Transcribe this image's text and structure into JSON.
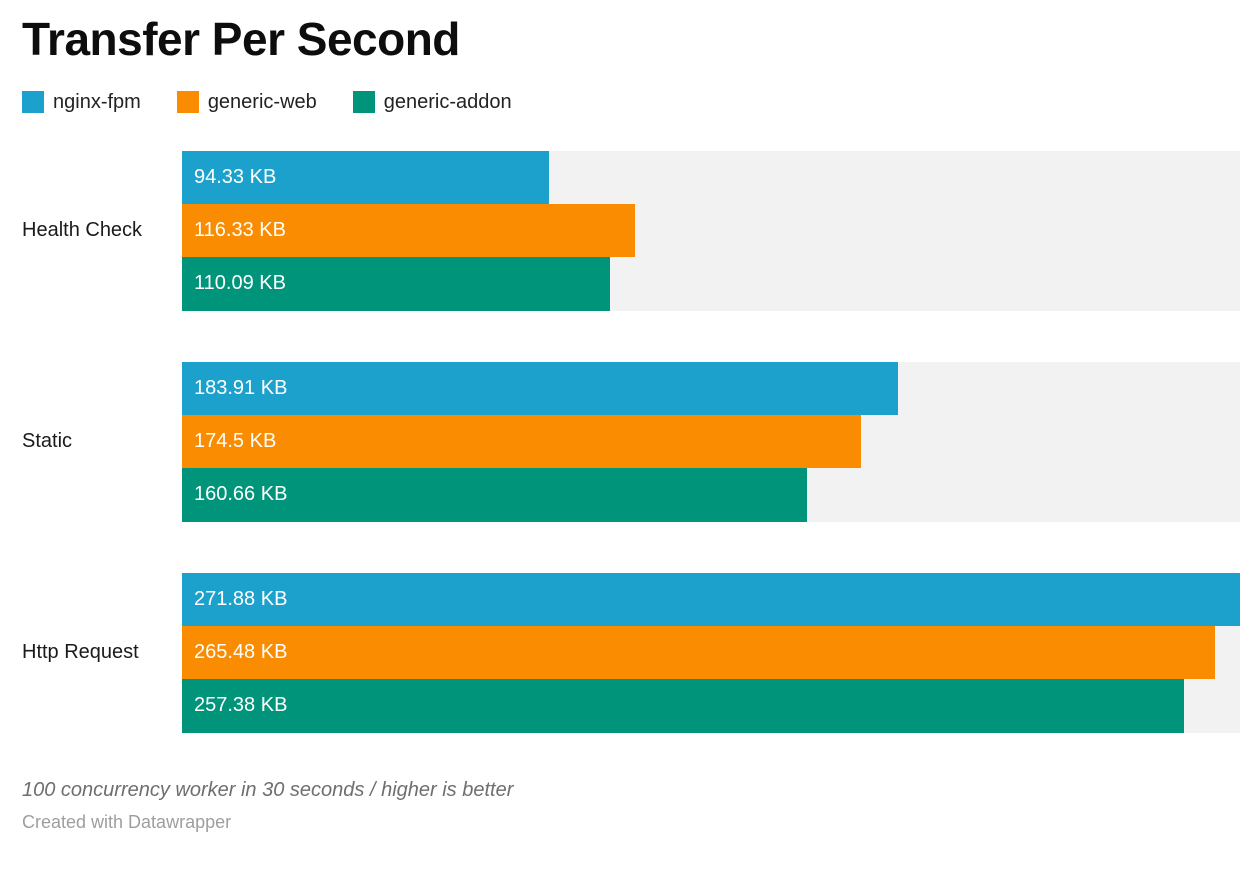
{
  "title": "Transfer Per Second",
  "footer": {
    "note": "100 concurrency worker in 30 seconds / higher is better",
    "attribution": "Created with Datawrapper"
  },
  "colors": {
    "nginx_fpm": "#1CA1CC",
    "generic_web": "#F98C00",
    "generic_addon": "#00947A",
    "track": "#F2F2F2",
    "value_label_text": "#FFFFFF"
  },
  "chart_data": {
    "type": "bar",
    "orientation": "horizontal",
    "title": "Transfer Per Second",
    "xlabel": "",
    "ylabel": "",
    "unit": "KB",
    "xlim": [
      0,
      271.88
    ],
    "grid": false,
    "legend_position": "top-left",
    "categories": [
      "Health Check",
      "Static",
      "Http Request"
    ],
    "series": [
      {
        "name": "nginx-fpm",
        "color": "#1CA1CC",
        "values": [
          94.33,
          183.91,
          271.88
        ],
        "labels": [
          "94.33 KB",
          "183.91 KB",
          "271.88 KB"
        ]
      },
      {
        "name": "generic-web",
        "color": "#F98C00",
        "values": [
          116.33,
          174.5,
          265.48
        ],
        "labels": [
          "116.33 KB",
          "174.5 KB",
          "265.48 KB"
        ]
      },
      {
        "name": "generic-addon",
        "color": "#00947A",
        "values": [
          110.09,
          160.66,
          257.38
        ],
        "labels": [
          "110.09 KB",
          "160.66 KB",
          "257.38 KB"
        ]
      }
    ]
  }
}
